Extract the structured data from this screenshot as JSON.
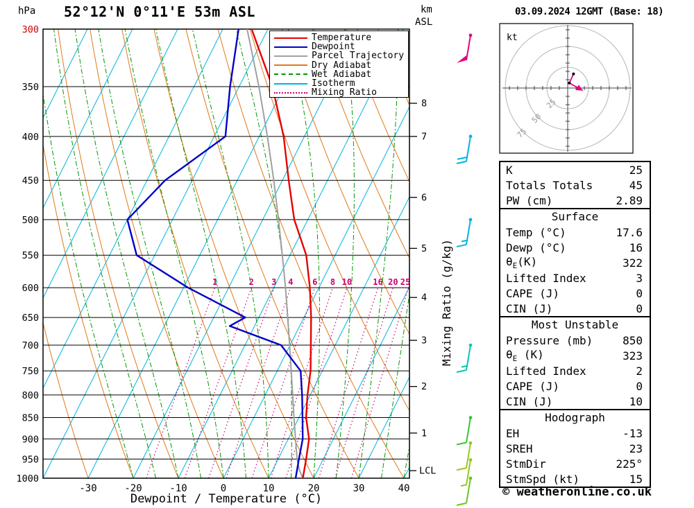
{
  "header": {
    "pressure_unit": "hPa",
    "title": "52°12'N 0°11'E 53m ASL",
    "altitude_unit": "km",
    "altitude_datum": "ASL",
    "datetime": "03.09.2024 12GMT (Base: 18)"
  },
  "axes": {
    "pressure_ticks": [
      300,
      350,
      400,
      450,
      500,
      550,
      600,
      650,
      700,
      750,
      800,
      850,
      900,
      950,
      1000
    ],
    "pressure_tick_highlight": {
      "value": 300,
      "color": "#cc0000"
    },
    "temp_ticks": [
      -30,
      -20,
      -10,
      0,
      10,
      20,
      30,
      40
    ],
    "xlabel": "Dewpoint / Temperature (°C)",
    "mixing_axis_label": "Mixing Ratio (g/kg)",
    "km_ticks": [
      {
        "km": 8,
        "p": 366
      },
      {
        "km": 7,
        "p": 400
      },
      {
        "km": 6,
        "p": 471
      },
      {
        "km": 5,
        "p": 540
      },
      {
        "km": 4,
        "p": 616
      },
      {
        "km": 3,
        "p": 691
      },
      {
        "km": 2,
        "p": 782
      },
      {
        "km": 1,
        "p": 886
      }
    ],
    "lcl": {
      "label": "LCL",
      "p": 980
    }
  },
  "legend": [
    {
      "label": "Temperature",
      "color": "#e60000",
      "style": "solid"
    },
    {
      "label": "Dewpoint",
      "color": "#0000c8",
      "style": "solid"
    },
    {
      "label": "Parcel Trajectory",
      "color": "#a0a0a0",
      "style": "solid"
    },
    {
      "label": "Dry Adiabat",
      "color": "#e07818",
      "style": "solid"
    },
    {
      "label": "Wet Adiabat",
      "color": "#009600",
      "style": "dashdot"
    },
    {
      "label": "Isotherm",
      "color": "#00b4dc",
      "style": "solid"
    },
    {
      "label": "Mixing Ratio",
      "color": "#c8006e",
      "style": "dotted"
    }
  ],
  "chart_data": {
    "type": "skewt-log-p",
    "pressure_range": [
      300,
      1000
    ],
    "temp_axis_range_c": [
      -40,
      40
    ],
    "skew_slope": 0.5,
    "isotherm_step_c": 10,
    "grid_on": true,
    "colors": {
      "temperature": "#e60000",
      "dewpoint": "#0000c8",
      "parcel": "#a0a0a0",
      "dry_adiabat": "#e07818",
      "wet_adiabat": "#009600",
      "isotherm": "#00b4dc",
      "mixing_ratio": "#c8006e",
      "grid": "#000000"
    },
    "dry_adiabats_theta_c": [
      -40,
      -30,
      -20,
      -10,
      0,
      10,
      20,
      30,
      40,
      50,
      60,
      70,
      80,
      90,
      100,
      110
    ],
    "wet_adiabats_thetaw_c": [
      -20,
      -15,
      -10,
      -5,
      0,
      5,
      10,
      15,
      20,
      25,
      30,
      35,
      40
    ],
    "mixing_ratio_lines_gkg": [
      1,
      2,
      3,
      4,
      6,
      8,
      10,
      16,
      20,
      25
    ],
    "mixing_ratio_label_pressure": 600,
    "temperature_profile_p_c": [
      [
        1000,
        17.6
      ],
      [
        950,
        16.2
      ],
      [
        900,
        14.6
      ],
      [
        850,
        11.6
      ],
      [
        800,
        9.4
      ],
      [
        750,
        7.4
      ],
      [
        700,
        4.6
      ],
      [
        650,
        1.6
      ],
      [
        600,
        -2.0
      ],
      [
        550,
        -6.4
      ],
      [
        500,
        -13.0
      ],
      [
        450,
        -18.6
      ],
      [
        400,
        -24.6
      ],
      [
        350,
        -32.6
      ],
      [
        300,
        -43.6
      ]
    ],
    "dewpoint_profile_p_c": [
      [
        1000,
        16.0
      ],
      [
        950,
        14.6
      ],
      [
        900,
        13.2
      ],
      [
        850,
        10.8
      ],
      [
        800,
        8.2
      ],
      [
        750,
        5.2
      ],
      [
        700,
        -2.0
      ],
      [
        665,
        -15.5
      ],
      [
        650,
        -13.0
      ],
      [
        600,
        -29.0
      ],
      [
        550,
        -44.0
      ],
      [
        500,
        -50.0
      ],
      [
        450,
        -46.0
      ],
      [
        400,
        -37.5
      ],
      [
        350,
        -42.0
      ],
      [
        300,
        -46.5
      ]
    ],
    "parcel_profile_p_c": [
      [
        1000,
        17.6
      ],
      [
        978,
        15.9
      ],
      [
        950,
        14.2
      ],
      [
        900,
        11.6
      ],
      [
        850,
        8.9
      ],
      [
        800,
        6.1
      ],
      [
        750,
        3.1
      ],
      [
        700,
        -0.1
      ],
      [
        650,
        -3.6
      ],
      [
        600,
        -7.4
      ],
      [
        550,
        -11.7
      ],
      [
        500,
        -16.5
      ],
      [
        450,
        -21.9
      ],
      [
        400,
        -28.2
      ],
      [
        350,
        -35.6
      ],
      [
        300,
        -44.6
      ]
    ],
    "wind_barbs": [
      {
        "p": 305,
        "kt": 50,
        "color": "#e6007e"
      },
      {
        "p": 400,
        "kt": 20,
        "color": "#00b4dc"
      },
      {
        "p": 500,
        "kt": 15,
        "color": "#00b4dc"
      },
      {
        "p": 700,
        "kt": 15,
        "color": "#00c8b4"
      },
      {
        "p": 850,
        "kt": 10,
        "color": "#32c832"
      },
      {
        "p": 910,
        "kt": 10,
        "color": "#96c81e"
      },
      {
        "p": 952,
        "kt": 5,
        "color": "#96c81e"
      },
      {
        "p": 1000,
        "kt": 10,
        "color": "#64c81e"
      }
    ]
  },
  "hodograph": {
    "unit_label": "kt",
    "rings_kt": [
      25,
      50,
      75
    ],
    "ring_label_color": "#969696",
    "trace_color": "#e6007e",
    "storm_trace_kt": [
      [
        7,
        17
      ],
      [
        2,
        6
      ],
      [
        18,
        -3
      ]
    ]
  },
  "panel": {
    "sections": [
      {
        "title": null,
        "rows": [
          [
            "K",
            "25"
          ],
          [
            "Totals Totals",
            "45"
          ],
          [
            "PW (cm)",
            "2.89"
          ]
        ]
      },
      {
        "title": "Surface",
        "rows": [
          [
            "Temp (°C)",
            "17.6"
          ],
          [
            "Dewp (°C)",
            "16"
          ],
          [
            "θ_E(K)",
            "322"
          ],
          [
            "Lifted Index",
            "3"
          ],
          [
            "CAPE (J)",
            "0"
          ],
          [
            "CIN (J)",
            "0"
          ]
        ]
      },
      {
        "title": "Most Unstable",
        "rows": [
          [
            "Pressure (mb)",
            "850"
          ],
          [
            "θ_E (K)",
            "323"
          ],
          [
            "Lifted Index",
            "2"
          ],
          [
            "CAPE (J)",
            "0"
          ],
          [
            "CIN (J)",
            "10"
          ]
        ]
      },
      {
        "title": "Hodograph",
        "rows": [
          [
            "EH",
            "-13"
          ],
          [
            "SREH",
            "23"
          ],
          [
            "StmDir",
            "225°"
          ],
          [
            "StmSpd (kt)",
            "15"
          ]
        ]
      }
    ]
  },
  "footer": {
    "copyright": "© weatheronline.co.uk"
  }
}
